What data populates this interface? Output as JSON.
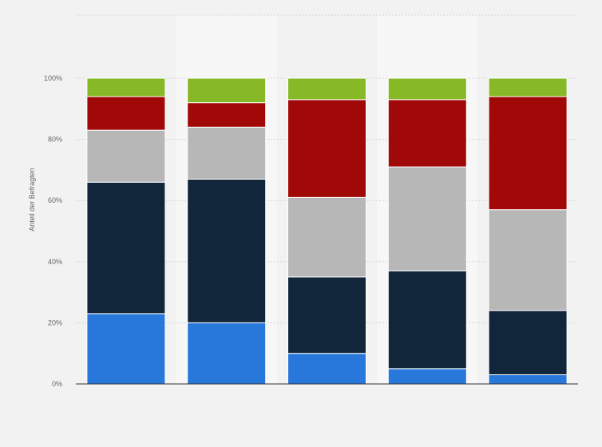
{
  "chart_data": {
    "type": "bar",
    "stacked": true,
    "orientation": "vertical",
    "ylabel": "Anteil der Befragten",
    "ylim": [
      0,
      100
    ],
    "yticks": [
      "0%",
      "20%",
      "40%",
      "60%",
      "80%",
      "100%"
    ],
    "grid": true,
    "series": [
      {
        "color": "#2878dc",
        "values": [
          23,
          20,
          10,
          5,
          3
        ]
      },
      {
        "color": "#11263b",
        "values": [
          43,
          47,
          25,
          32,
          21
        ]
      },
      {
        "color": "#b7b7b7",
        "values": [
          17,
          17,
          26,
          34,
          33
        ]
      },
      {
        "color": "#a10808",
        "values": [
          11,
          8,
          32,
          22,
          37
        ]
      },
      {
        "color": "#86b925",
        "values": [
          6,
          8,
          7,
          7,
          6
        ]
      }
    ]
  }
}
